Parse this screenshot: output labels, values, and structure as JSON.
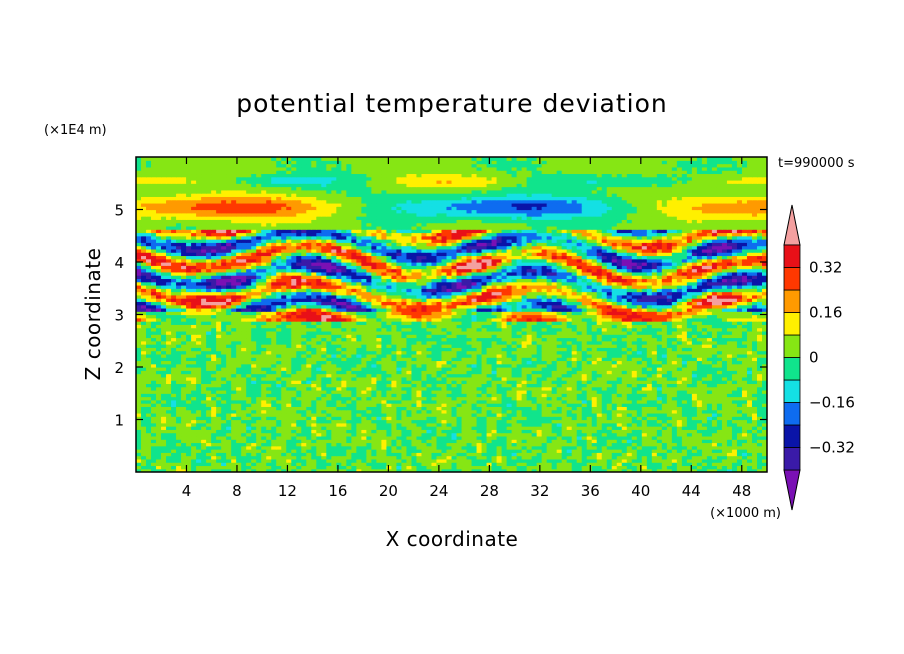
{
  "chart_data": {
    "type": "heatmap",
    "title": "potential temperature deviation",
    "xlabel": "X coordinate",
    "ylabel": "Z coordinate",
    "x_unit": "(×1000 m)",
    "y_unit": "(×1E4 m)",
    "time_label": "t=990000 s",
    "xlim": [
      0,
      50
    ],
    "ylim": [
      0,
      6
    ],
    "x_ticks": [
      4,
      8,
      12,
      16,
      20,
      24,
      28,
      32,
      36,
      40,
      44,
      48
    ],
    "y_ticks": [
      1,
      2,
      3,
      4,
      5
    ],
    "colorbar": {
      "levels": [
        -0.4,
        -0.32,
        -0.24,
        -0.16,
        -0.08,
        0,
        0.08,
        0.16,
        0.24,
        0.32,
        0.4
      ],
      "colors": [
        "#7a10b4",
        "#3a1aa8",
        "#0a14a8",
        "#0e6cf0",
        "#14e0e4",
        "#10e48c",
        "#86e614",
        "#fff000",
        "#ff9a00",
        "#ff3800",
        "#e81018",
        "#f4a0a0"
      ],
      "labels": [
        "0.32",
        "0.16",
        "0",
        "-0.16",
        "-0.32"
      ],
      "label_values": [
        0.32,
        0.16,
        0,
        -0.16,
        -0.32
      ]
    },
    "bands": [
      {
        "z": [
          0,
          2.9
        ],
        "pattern": "small-scale noise",
        "range": [
          -0.08,
          0.08
        ]
      },
      {
        "z": [
          2.9,
          4.6
        ],
        "pattern": "large-amplitude turbulent layers",
        "range": [
          -0.4,
          0.4
        ]
      },
      {
        "z": [
          4.6,
          6.0
        ],
        "pattern": "weak horizontal waves",
        "range": [
          -0.24,
          0.24
        ]
      }
    ]
  }
}
